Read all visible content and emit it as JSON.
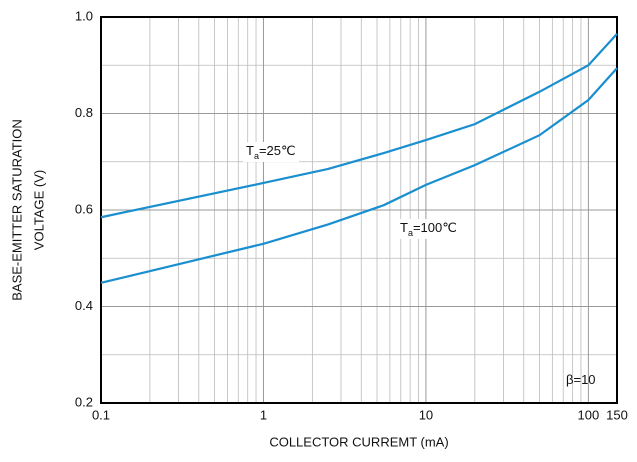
{
  "chart_data": {
    "type": "line",
    "x_label": "COLLECTOR CURREMT (mA)",
    "y_label": [
      "BASE-EMITTER SATURATION",
      "VOLTAGE  (V)"
    ],
    "x": [
      0.1,
      1,
      2.5,
      5.5,
      10,
      20,
      50,
      100,
      150
    ],
    "series": [
      {
        "name": "Ta=25℃",
        "color": "#1a8fd0",
        "values": [
          0.585,
          0.656,
          0.685,
          0.718,
          0.745,
          0.778,
          0.845,
          0.9,
          0.965
        ]
      },
      {
        "name": "Ta=100℃",
        "color": "#1a8fd0",
        "values": [
          0.449,
          0.53,
          0.57,
          0.61,
          0.652,
          0.693,
          0.755,
          0.828,
          0.894
        ]
      }
    ],
    "annotations": [
      {
        "label": "T",
        "subscript": "a",
        "text": "=25℃"
      },
      {
        "label": "T",
        "subscript": "a",
        "text": "=100℃"
      },
      {
        "label": "β=10"
      }
    ],
    "xlim": [
      0.1,
      150
    ],
    "xticks": [
      0.1,
      1,
      10,
      100,
      150
    ],
    "xscale": "log",
    "ylim": [
      0.2,
      1.0
    ],
    "yticks": [
      0.2,
      0.4,
      0.6,
      0.8,
      {
        "value": 1.0,
        "label": "1.0"
      }
    ],
    "grid": true
  }
}
